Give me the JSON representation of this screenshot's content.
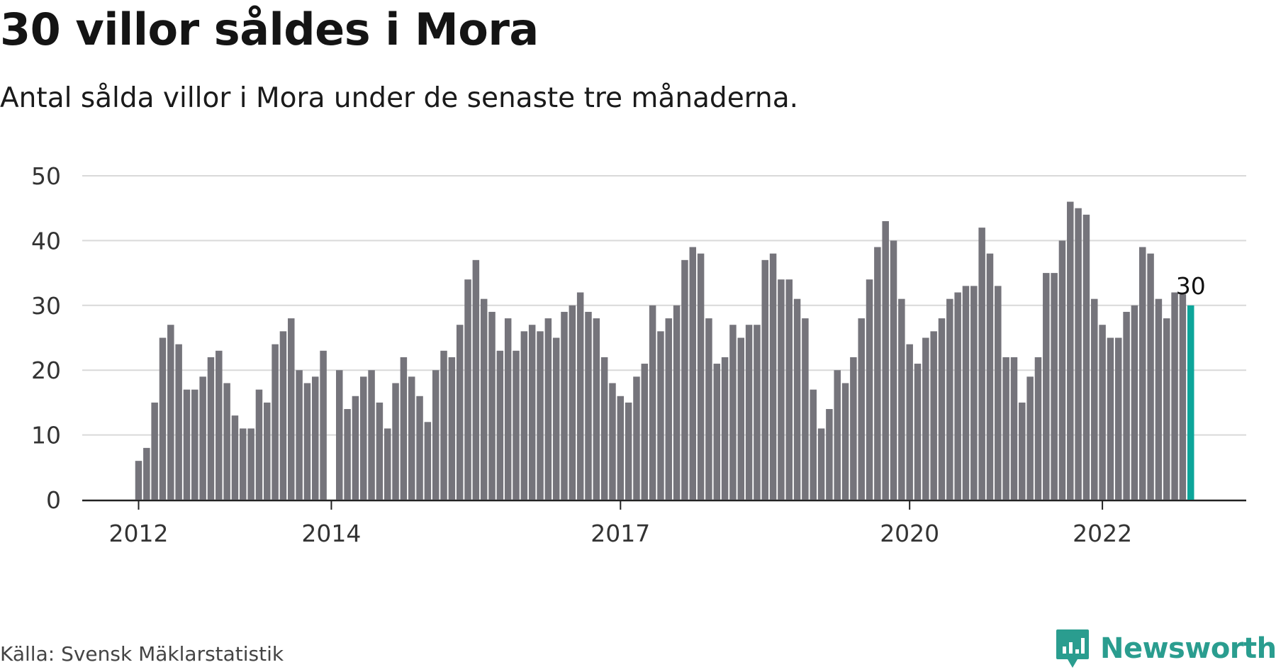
{
  "header": {
    "title": "30 villor såldes i Mora",
    "subtitle": "Antal sålda villor i Mora under de senaste tre månaderna."
  },
  "footer": {
    "source": "Källa: Svensk Mäklarstatistik",
    "logo_text": "Newsworthy"
  },
  "colors": {
    "bar": "#75747b",
    "highlight": "#0da59a",
    "grid": "#d9d9d9",
    "axis": "#222222",
    "tick_text": "#333333",
    "logo": "#2a9d8f"
  },
  "chart_data": {
    "type": "bar",
    "ylim": [
      0,
      50
    ],
    "y_ticks": [
      0,
      10,
      20,
      30,
      40,
      50
    ],
    "x_ticks": [
      {
        "label": "2012",
        "at": "2012-01"
      },
      {
        "label": "2014",
        "at": "2014-01"
      },
      {
        "label": "2017",
        "at": "2017-01"
      },
      {
        "label": "2020",
        "at": "2020-01"
      },
      {
        "label": "2022",
        "at": "2022-01"
      }
    ],
    "grid": true,
    "start_month": "2012-01",
    "values": [
      6,
      8,
      15,
      25,
      27,
      24,
      17,
      17,
      19,
      22,
      23,
      18,
      13,
      11,
      11,
      17,
      15,
      24,
      26,
      28,
      20,
      18,
      19,
      23,
      null,
      20,
      14,
      16,
      19,
      20,
      15,
      11,
      18,
      22,
      19,
      16,
      12,
      20,
      23,
      22,
      27,
      34,
      37,
      31,
      29,
      23,
      28,
      23,
      26,
      27,
      26,
      28,
      25,
      29,
      30,
      32,
      29,
      28,
      22,
      18,
      16,
      15,
      19,
      21,
      30,
      26,
      28,
      30,
      37,
      39,
      38,
      28,
      21,
      22,
      27,
      25,
      27,
      27,
      37,
      38,
      34,
      34,
      31,
      28,
      17,
      11,
      14,
      20,
      18,
      22,
      28,
      34,
      39,
      43,
      40,
      31,
      24,
      21,
      25,
      26,
      28,
      31,
      32,
      33,
      33,
      42,
      38,
      33,
      22,
      22,
      15,
      19,
      22,
      35,
      35,
      40,
      46,
      45,
      44,
      31,
      27,
      25,
      25,
      29,
      30,
      39,
      38,
      31,
      28,
      32,
      31.7,
      30
    ],
    "highlight_index": 131,
    "highlight_label": "30"
  }
}
